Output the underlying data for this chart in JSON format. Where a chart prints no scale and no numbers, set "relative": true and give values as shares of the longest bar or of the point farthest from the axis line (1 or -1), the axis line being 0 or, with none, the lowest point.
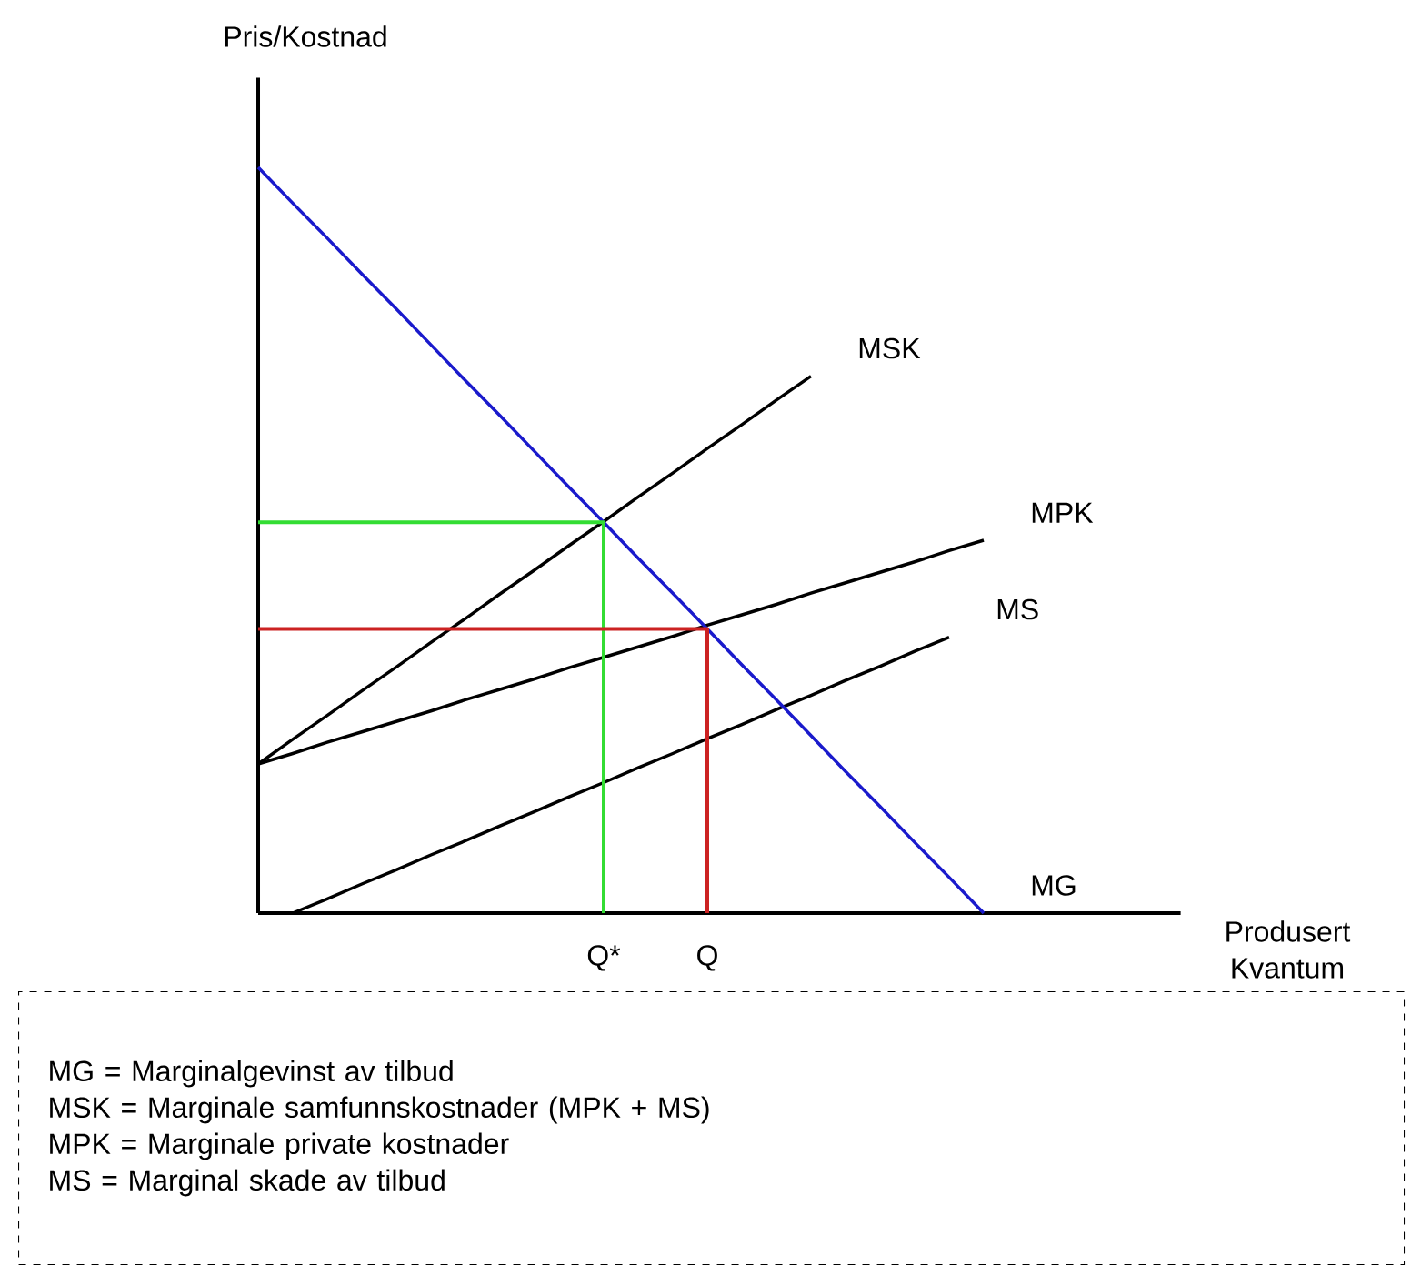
{
  "chart_data": {
    "type": "line",
    "relative": true,
    "ylabel": "Pris/Kostnad",
    "xlabel": "Produsert Kvantum",
    "categories": [
      null,
      null,
      null,
      null,
      null,
      null,
      null,
      null,
      null,
      null,
      "Q*",
      null,
      null,
      "Q",
      null,
      null,
      null,
      null,
      null,
      null,
      null,
      null,
      null,
      null,
      null,
      null,
      null
    ],
    "series": [
      {
        "name": "MSK",
        "color": "#000000",
        "values": [
          0.2,
          0.233,
          0.265,
          0.298,
          0.33,
          0.363,
          0.395,
          0.428,
          0.46,
          0.493,
          0.525,
          0.558,
          0.59,
          0.623,
          0.655,
          0.688,
          0.72,
          null,
          null,
          null,
          null,
          null,
          null,
          null,
          null,
          null,
          null
        ]
      },
      {
        "name": "MPK",
        "color": "#000000",
        "values": [
          0.2,
          0.214,
          0.229,
          0.243,
          0.257,
          0.271,
          0.286,
          0.3,
          0.314,
          0.329,
          0.343,
          0.357,
          0.371,
          0.386,
          0.4,
          0.414,
          0.429,
          0.443,
          0.457,
          0.471,
          0.486,
          0.5,
          null,
          null,
          null,
          null,
          null
        ]
      },
      {
        "name": "MS",
        "color": "#000000",
        "values": [
          null,
          0,
          0.019,
          0.039,
          0.058,
          0.078,
          0.097,
          0.117,
          0.136,
          0.156,
          0.175,
          0.195,
          0.214,
          0.234,
          0.253,
          0.273,
          0.292,
          0.312,
          0.331,
          0.351,
          0.37,
          null,
          null,
          null,
          null,
          null,
          null
        ]
      },
      {
        "name": "MG",
        "color": "#1a1acc",
        "values": [
          1,
          0.952,
          0.905,
          0.857,
          0.81,
          0.762,
          0.714,
          0.667,
          0.619,
          0.571,
          0.524,
          0.476,
          0.429,
          0.381,
          0.333,
          0.286,
          0.238,
          0.19,
          0.143,
          0.095,
          0.048,
          0,
          null,
          null,
          null,
          null,
          null
        ]
      },
      {
        "type": "step",
        "color": "#33dd33",
        "values": [
          0.524,
          0.524,
          0.524,
          0.524,
          0.524,
          0.524,
          0.524,
          0.524,
          0.524,
          0.524,
          0,
          null,
          null,
          null,
          null,
          null,
          null,
          null,
          null,
          null,
          null,
          null,
          null,
          null,
          null,
          null,
          null
        ]
      },
      {
        "type": "step",
        "color": "#cc2222",
        "values": [
          0.381,
          0.381,
          0.381,
          0.381,
          0.381,
          0.381,
          0.381,
          0.381,
          0.381,
          0.381,
          0.381,
          0.381,
          0.381,
          0,
          null,
          null,
          null,
          null,
          null,
          null,
          null,
          null,
          null,
          null,
          null,
          null,
          null
        ]
      }
    ],
    "annotations": [
      "MG = Marginalgevinst av tilbud",
      "MSK = Marginale samfunnskostnader (MPK + MS)",
      "MPK = Marginale private kostnader",
      "MS = Marginal skade av tilbud"
    ]
  }
}
